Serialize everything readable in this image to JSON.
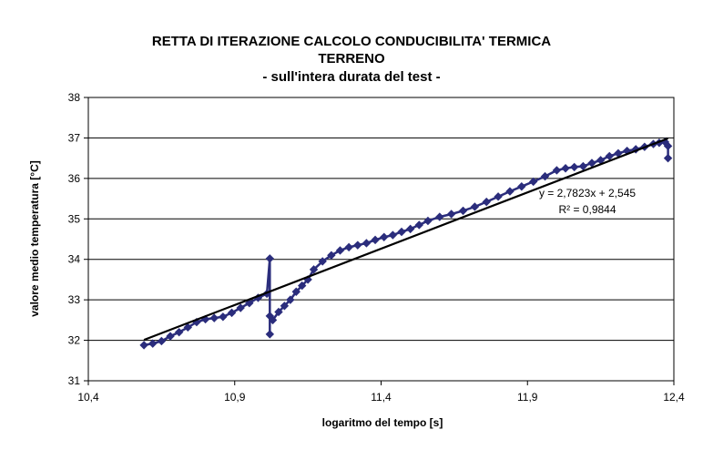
{
  "chart_data": {
    "type": "scatter",
    "title_lines": [
      "RETTA DI ITERAZIONE CALCOLO CONDUCIBILITA' TERMICA",
      "TERRENO",
      "- sull'intera durata del test -"
    ],
    "xlabel": "logaritmo del tempo [s]",
    "ylabel": "valore medio temperatura [°C]",
    "xlim": [
      10.4,
      12.4
    ],
    "ylim": [
      31,
      38
    ],
    "x_ticks": [
      "10,4",
      "10,9",
      "11,4",
      "11,9",
      "12,4"
    ],
    "x_tick_values": [
      10.4,
      10.9,
      11.4,
      11.9,
      12.4
    ],
    "y_ticks": [
      "31",
      "32",
      "33",
      "34",
      "35",
      "36",
      "37",
      "38"
    ],
    "y_tick_values": [
      31,
      32,
      33,
      34,
      35,
      36,
      37,
      38
    ],
    "grid": "horizontal",
    "series": [
      {
        "x": [
          10.59,
          10.62,
          10.65,
          10.68,
          10.71,
          10.74,
          10.77,
          10.8,
          10.83,
          10.86,
          10.89,
          10.92,
          10.95,
          10.98,
          11.01,
          11.02,
          11.02,
          11.02,
          11.03,
          11.05,
          11.07,
          11.09,
          11.11,
          11.13,
          11.15,
          11.17,
          11.2,
          11.23,
          11.26,
          11.29,
          11.32,
          11.35,
          11.38,
          11.41,
          11.44,
          11.47,
          11.5,
          11.53,
          11.56,
          11.6,
          11.64,
          11.68,
          11.72,
          11.76,
          11.8,
          11.84,
          11.88,
          11.92,
          11.96,
          12.0,
          12.03,
          12.06,
          12.09,
          12.12,
          12.15,
          12.18,
          12.21,
          12.24,
          12.27,
          12.3,
          12.33,
          12.35,
          12.37,
          12.38,
          12.38
        ],
        "y": [
          31.88,
          31.92,
          31.98,
          32.1,
          32.2,
          32.32,
          32.45,
          32.52,
          32.55,
          32.58,
          32.68,
          32.8,
          32.92,
          33.05,
          33.15,
          34.02,
          32.15,
          32.6,
          32.5,
          32.7,
          32.85,
          33.0,
          33.2,
          33.35,
          33.5,
          33.75,
          33.95,
          34.1,
          34.22,
          34.3,
          34.35,
          34.4,
          34.48,
          34.55,
          34.6,
          34.68,
          34.75,
          34.85,
          34.95,
          35.05,
          35.12,
          35.2,
          35.3,
          35.42,
          35.55,
          35.68,
          35.8,
          35.92,
          36.05,
          36.2,
          36.25,
          36.28,
          36.3,
          36.38,
          36.45,
          36.55,
          36.62,
          36.68,
          36.72,
          36.78,
          36.85,
          36.88,
          36.9,
          36.8,
          36.5
        ]
      }
    ],
    "trendline": {
      "slope": 2.7823,
      "intercept": 2.545,
      "x_range": [
        10.59,
        12.38
      ]
    },
    "annotations": [
      "y = 2,7823x + 2,545",
      "R² = 0,9844"
    ],
    "colors": {
      "series": "#2b2d7c",
      "trendline": "#000000",
      "grid": "#000000"
    }
  }
}
